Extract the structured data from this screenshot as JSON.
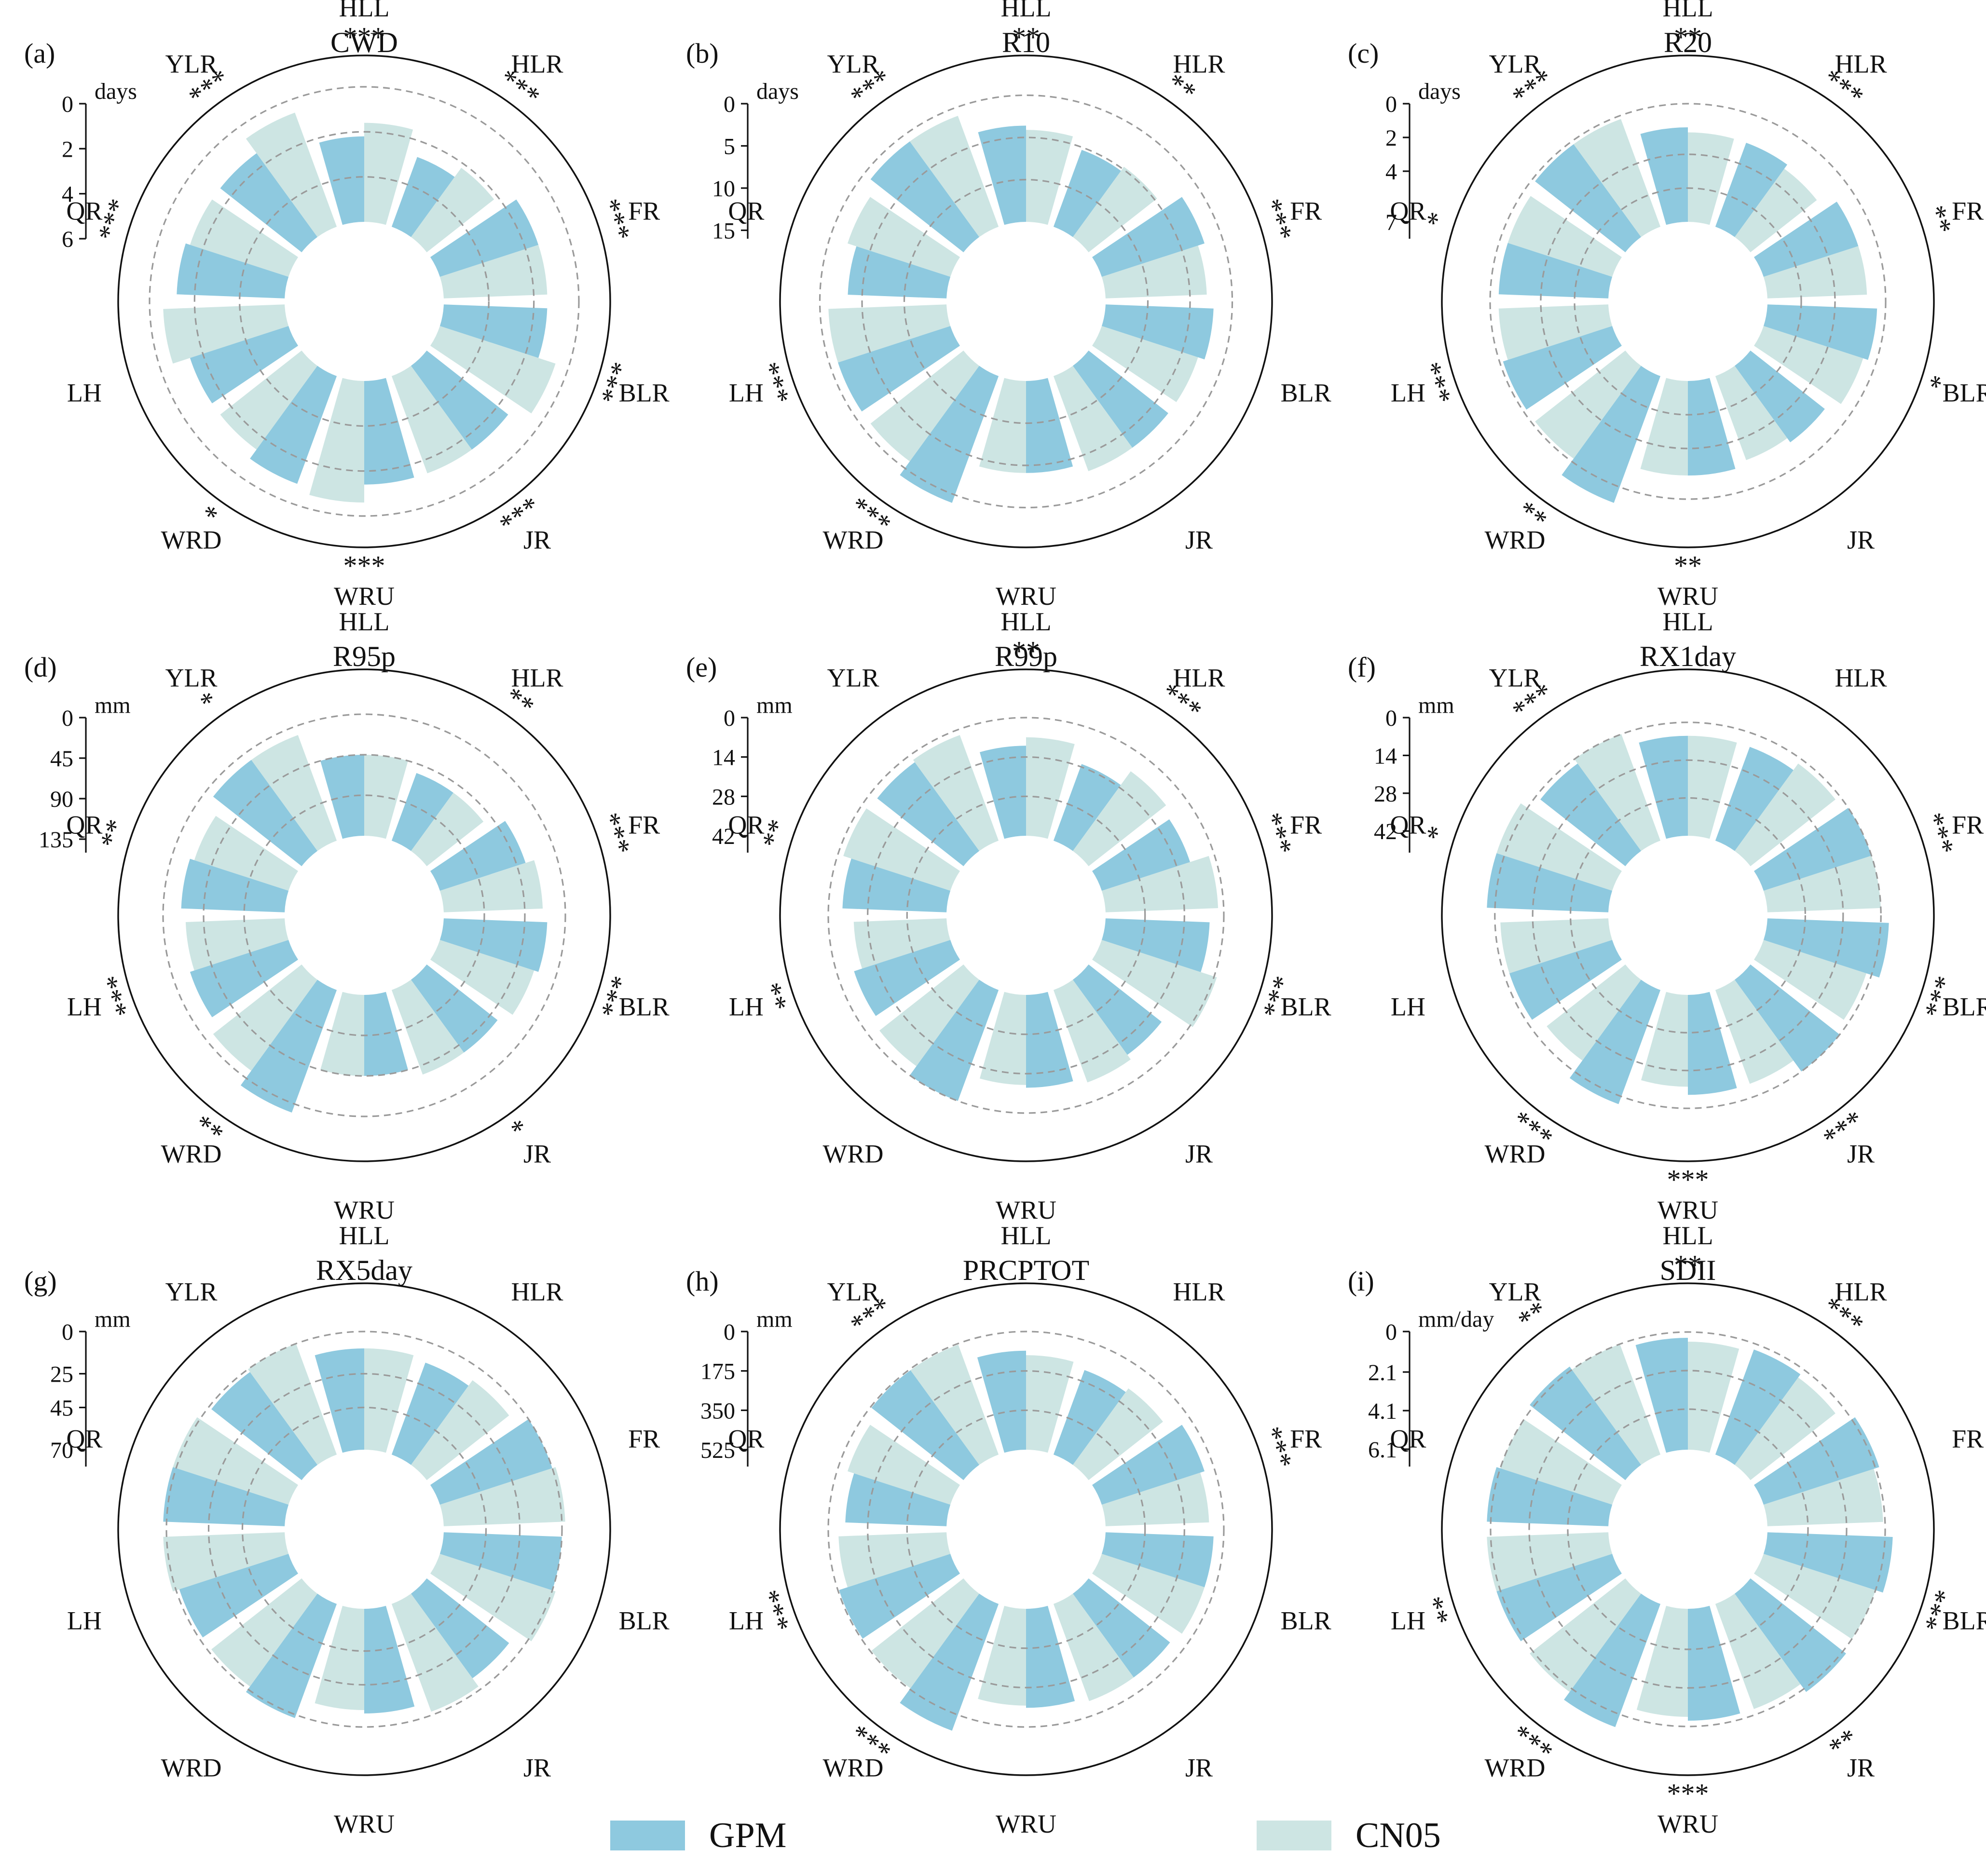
{
  "regions": [
    "HLL",
    "HLR",
    "FR",
    "BLR",
    "JR",
    "WRU",
    "WRD",
    "LH",
    "QR",
    "YLR"
  ],
  "legend": [
    {
      "name": "GPM",
      "color": "#8ec9df"
    },
    {
      "name": "CN05",
      "color": "#cde5e3"
    }
  ],
  "colors": {
    "gpm": "#8ec9df",
    "cn05": "#cde5e3",
    "grid": "#9a9a9a",
    "axis": "#111111"
  },
  "chart_data": [
    {
      "type": "bar",
      "polar": true,
      "panel": "(a)",
      "title": "CWD",
      "unit": "days",
      "ticks": [
        "0",
        "2",
        "4",
        "6"
      ],
      "tick_values": [
        0,
        2,
        4,
        6
      ],
      "rlim": [
        0,
        6
      ],
      "categories": [
        "HLL",
        "HLR",
        "FR",
        "BLR",
        "JR",
        "WRU",
        "WRD",
        "LH",
        "QR",
        "YLR"
      ],
      "series": [
        {
          "name": "GPM",
          "values": [
            3.8,
            3.3,
            4.6,
            4.6,
            4.6,
            4.6,
            5.1,
            4.6,
            4.8,
            4.6
          ]
        },
        {
          "name": "CN05",
          "values": [
            4.4,
            3.8,
            4.6,
            5.4,
            4.6,
            5.4,
            4.6,
            5.4,
            4.6,
            5.4
          ]
        }
      ],
      "significance": [
        "***",
        "***",
        "***",
        "***",
        "***",
        "***",
        "*",
        "",
        "***",
        "***"
      ]
    },
    {
      "type": "bar",
      "polar": true,
      "panel": "(b)",
      "title": "R10",
      "unit": "days",
      "ticks": [
        "0",
        "5",
        "10",
        "15"
      ],
      "tick_values": [
        0,
        5,
        10,
        15
      ],
      "rlim": [
        0,
        16
      ],
      "categories": [
        "HLL",
        "HLR",
        "FR",
        "BLR",
        "JR",
        "WRU",
        "WRD",
        "LH",
        "QR",
        "YLR"
      ],
      "series": [
        {
          "name": "GPM",
          "values": [
            11.4,
            9.7,
            12.8,
            12.8,
            12.0,
            10.9,
            16.0,
            14.0,
            11.7,
            14.0
          ]
        },
        {
          "name": "CN05",
          "values": [
            10.9,
            10.3,
            12.0,
            12.0,
            12.0,
            10.9,
            14.0,
            14.0,
            12.8,
            14.0
          ]
        }
      ],
      "significance": [
        "**",
        "**",
        "***",
        "",
        "",
        "",
        "***",
        "***",
        "",
        "***"
      ]
    },
    {
      "type": "bar",
      "polar": true,
      "panel": "(c)",
      "title": "R20",
      "unit": "days",
      "ticks": [
        "0",
        "2",
        "4",
        "7"
      ],
      "tick_values": [
        0,
        2,
        4,
        7
      ],
      "rlim": [
        0,
        8
      ],
      "categories": [
        "HLL",
        "HLR",
        "FR",
        "BLR",
        "JR",
        "WRU",
        "WRD",
        "LH",
        "QR",
        "YLR"
      ],
      "series": [
        {
          "name": "GPM",
          "values": [
            5.6,
            5.3,
            5.9,
            6.5,
            5.6,
            5.6,
            8.0,
            6.8,
            6.5,
            6.8
          ]
        },
        {
          "name": "CN05",
          "values": [
            5.3,
            5.0,
            5.9,
            6.2,
            5.3,
            5.6,
            6.8,
            6.5,
            6.5,
            6.8
          ]
        }
      ],
      "significance": [
        "**",
        "***",
        "**",
        "*",
        "",
        "**",
        "**",
        "***",
        "*",
        "***"
      ]
    },
    {
      "type": "bar",
      "polar": true,
      "panel": "(d)",
      "title": "R95p",
      "unit": "mm",
      "ticks": [
        "0",
        "45",
        "90",
        "135"
      ],
      "tick_values": [
        0,
        45,
        90,
        135
      ],
      "rlim": [
        0,
        150
      ],
      "categories": [
        "HLL",
        "HLR",
        "FR",
        "BLR",
        "JR",
        "WRU",
        "WRD",
        "LH",
        "QR",
        "YLR"
      ],
      "series": [
        {
          "name": "GPM",
          "values": [
            90,
            80,
            100,
            115,
            100,
            90,
            145,
            115,
            115,
            125
          ]
        },
        {
          "name": "CN05",
          "values": [
            90,
            80,
            110,
            110,
            100,
            90,
            125,
            110,
            110,
            125
          ]
        }
      ],
      "significance": [
        "",
        "**",
        "***",
        "***",
        "*",
        "",
        "**",
        "***",
        "**",
        "*"
      ]
    },
    {
      "type": "bar",
      "polar": true,
      "panel": "(e)",
      "title": "R99p",
      "unit": "mm",
      "ticks": [
        "0",
        "14",
        "28",
        "42"
      ],
      "tick_values": [
        0,
        14,
        28,
        42
      ],
      "rlim": [
        0,
        48
      ],
      "categories": [
        "HLL",
        "HLR",
        "FR",
        "BLR",
        "JR",
        "WRU",
        "WRD",
        "LH",
        "QR",
        "YLR"
      ],
      "series": [
        {
          "name": "GPM",
          "values": [
            32,
            29,
            33,
            37,
            33,
            33,
            42,
            36,
            37,
            39
          ]
        },
        {
          "name": "CN05",
          "values": [
            35,
            35,
            40,
            43,
            35,
            32,
            38,
            33,
            40,
            40
          ]
        }
      ],
      "significance": [
        "**",
        "***",
        "***",
        "***",
        "",
        "",
        "",
        "**",
        "**",
        ""
      ]
    },
    {
      "type": "bar",
      "polar": true,
      "panel": "(f)",
      "title": "RX1day",
      "unit": "mm",
      "ticks": [
        "0",
        "14",
        "28",
        "42"
      ],
      "tick_values": [
        0,
        14,
        28,
        42
      ],
      "rlim": [
        0,
        50
      ],
      "categories": [
        "HLL",
        "HLR",
        "FR",
        "BLR",
        "JR",
        "WRU",
        "WRD",
        "LH",
        "QR",
        "YLR"
      ],
      "series": [
        {
          "name": "GPM",
          "values": [
            37,
            37,
            42,
            45,
            42,
            37,
            45,
            40,
            45,
            40
          ]
        },
        {
          "name": "CN05",
          "values": [
            37,
            40,
            42,
            40,
            37,
            34,
            37,
            40,
            45,
            42
          ]
        }
      ],
      "significance": [
        "",
        "",
        "***",
        "***",
        "***",
        "***",
        "***",
        "",
        "*",
        "***"
      ]
    },
    {
      "type": "bar",
      "polar": true,
      "panel": "(g)",
      "title": "RX5day",
      "unit": "mm",
      "ticks": [
        "0",
        "25",
        "45",
        "70"
      ],
      "tick_values": [
        0,
        25,
        45,
        70
      ],
      "rlim": [
        0,
        80
      ],
      "categories": [
        "HLL",
        "HLR",
        "FR",
        "BLR",
        "JR",
        "WRU",
        "WRD",
        "LH",
        "QR",
        "YLR"
      ],
      "series": [
        {
          "name": "GPM",
          "values": [
            60,
            58,
            70,
            70,
            62,
            62,
            72,
            68,
            72,
            68
          ]
        },
        {
          "name": "CN05",
          "values": [
            60,
            62,
            72,
            72,
            68,
            60,
            68,
            72,
            72,
            70
          ]
        }
      ],
      "significance": [
        "",
        "",
        "",
        "",
        "",
        "",
        "",
        "",
        "",
        ""
      ]
    },
    {
      "type": "bar",
      "polar": true,
      "panel": "(h)",
      "title": "PRCPTOT",
      "unit": "mm",
      "ticks": [
        "0",
        "175",
        "350",
        "525"
      ],
      "tick_values": [
        0,
        175,
        350,
        525
      ],
      "rlim": [
        0,
        600
      ],
      "categories": [
        "HLL",
        "HLR",
        "FR",
        "BLR",
        "JR",
        "WRU",
        "WRD",
        "LH",
        "QR",
        "YLR"
      ],
      "series": [
        {
          "name": "GPM",
          "values": [
            440,
            400,
            480,
            480,
            460,
            440,
            600,
            520,
            450,
            520
          ]
        },
        {
          "name": "CN05",
          "values": [
            420,
            420,
            460,
            480,
            460,
            430,
            520,
            480,
            480,
            520
          ]
        }
      ],
      "significance": [
        "",
        "",
        "***",
        "",
        "",
        "",
        "***",
        "***",
        "",
        "***"
      ]
    },
    {
      "type": "bar",
      "polar": true,
      "panel": "(i)",
      "title": "SDII",
      "unit": "mm/day",
      "ticks": [
        "0",
        "2.1",
        "4.1",
        "6.1"
      ],
      "tick_values": [
        0,
        2.1,
        4.1,
        6.1
      ],
      "rlim": [
        0,
        7
      ],
      "categories": [
        "HLL",
        "HLR",
        "FR",
        "BLR",
        "JR",
        "WRU",
        "WRD",
        "LH",
        "QR",
        "YLR"
      ],
      "series": [
        {
          "name": "GPM",
          "values": [
            5.8,
            5.8,
            6.3,
            6.5,
            6.3,
            5.8,
            6.8,
            6.3,
            6.3,
            6.3
          ]
        },
        {
          "name": "CN05",
          "values": [
            5.6,
            5.6,
            6.0,
            6.1,
            5.8,
            5.6,
            6.3,
            6.3,
            6.1,
            6.1
          ]
        }
      ],
      "significance": [
        "**",
        "***",
        "",
        "***",
        "**",
        "***",
        "***",
        "**",
        "",
        "**"
      ]
    }
  ]
}
